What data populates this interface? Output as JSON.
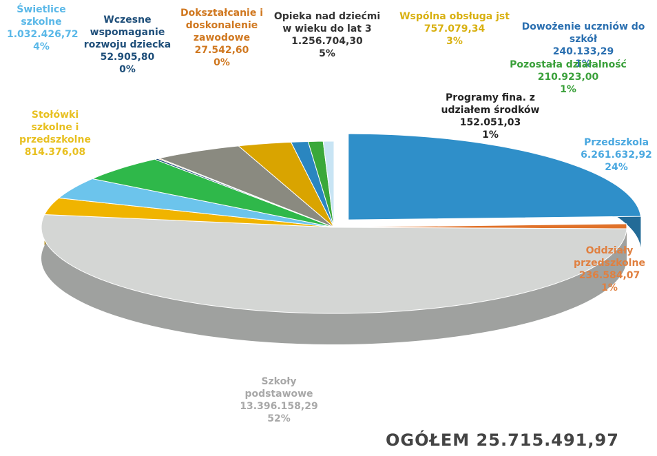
{
  "chart_data": {
    "type": "pie3d",
    "categories": [
      "Przedszkola",
      "Oddziały przedszkolne",
      "Szkoły podstawowe",
      "Stołówki szkolne i przedszkolne",
      "Świetlice szkolne",
      null,
      "Wczesne wspomaganie rozwoju dziecka",
      "Dokształcanie i doskonalenie zawodowe",
      "Opieka nad dziećmi w wieku do lat 3",
      "Wspólna obsługa jst",
      "Dowożenie uczniów do szkół",
      "Pozostała działalność",
      "Programy fina. z udziałem środków"
    ],
    "values": [
      6261632.92,
      236584.07,
      13396158.29,
      814376.08,
      1032426.72,
      1276974.53,
      52905.8,
      27542.6,
      1256704.3,
      757079.34,
      240133.29,
      210923.0,
      152051.03
    ],
    "value_labels": [
      "6.261.632,92",
      "236.584,07",
      "13.396.158,29",
      "814.376,08",
      "1.032.426,72",
      null,
      "52.905,80",
      "27.542,60",
      "1.256.704,30",
      "757.079,34",
      "240.133,29",
      "210.923,00",
      "152.051,03"
    ],
    "percent_labels": [
      "24%",
      "1%",
      "52%",
      null,
      "4%",
      null,
      "0%",
      "0%",
      "5%",
      "3%",
      "1%",
      "1%",
      "1%"
    ],
    "colors": [
      "#2f8fc9",
      "#e0722a",
      "#d4d6d4",
      "#f0b400",
      "#6cc4ec",
      "#2fb84a",
      "#1f4f7a",
      "#d97a20",
      "#8a8a80",
      "#d9a400",
      "#2a86c0",
      "#3aa83a",
      "#c8e4f4"
    ],
    "total_label": "OGÓŁEM 25.715.491,97"
  }
}
